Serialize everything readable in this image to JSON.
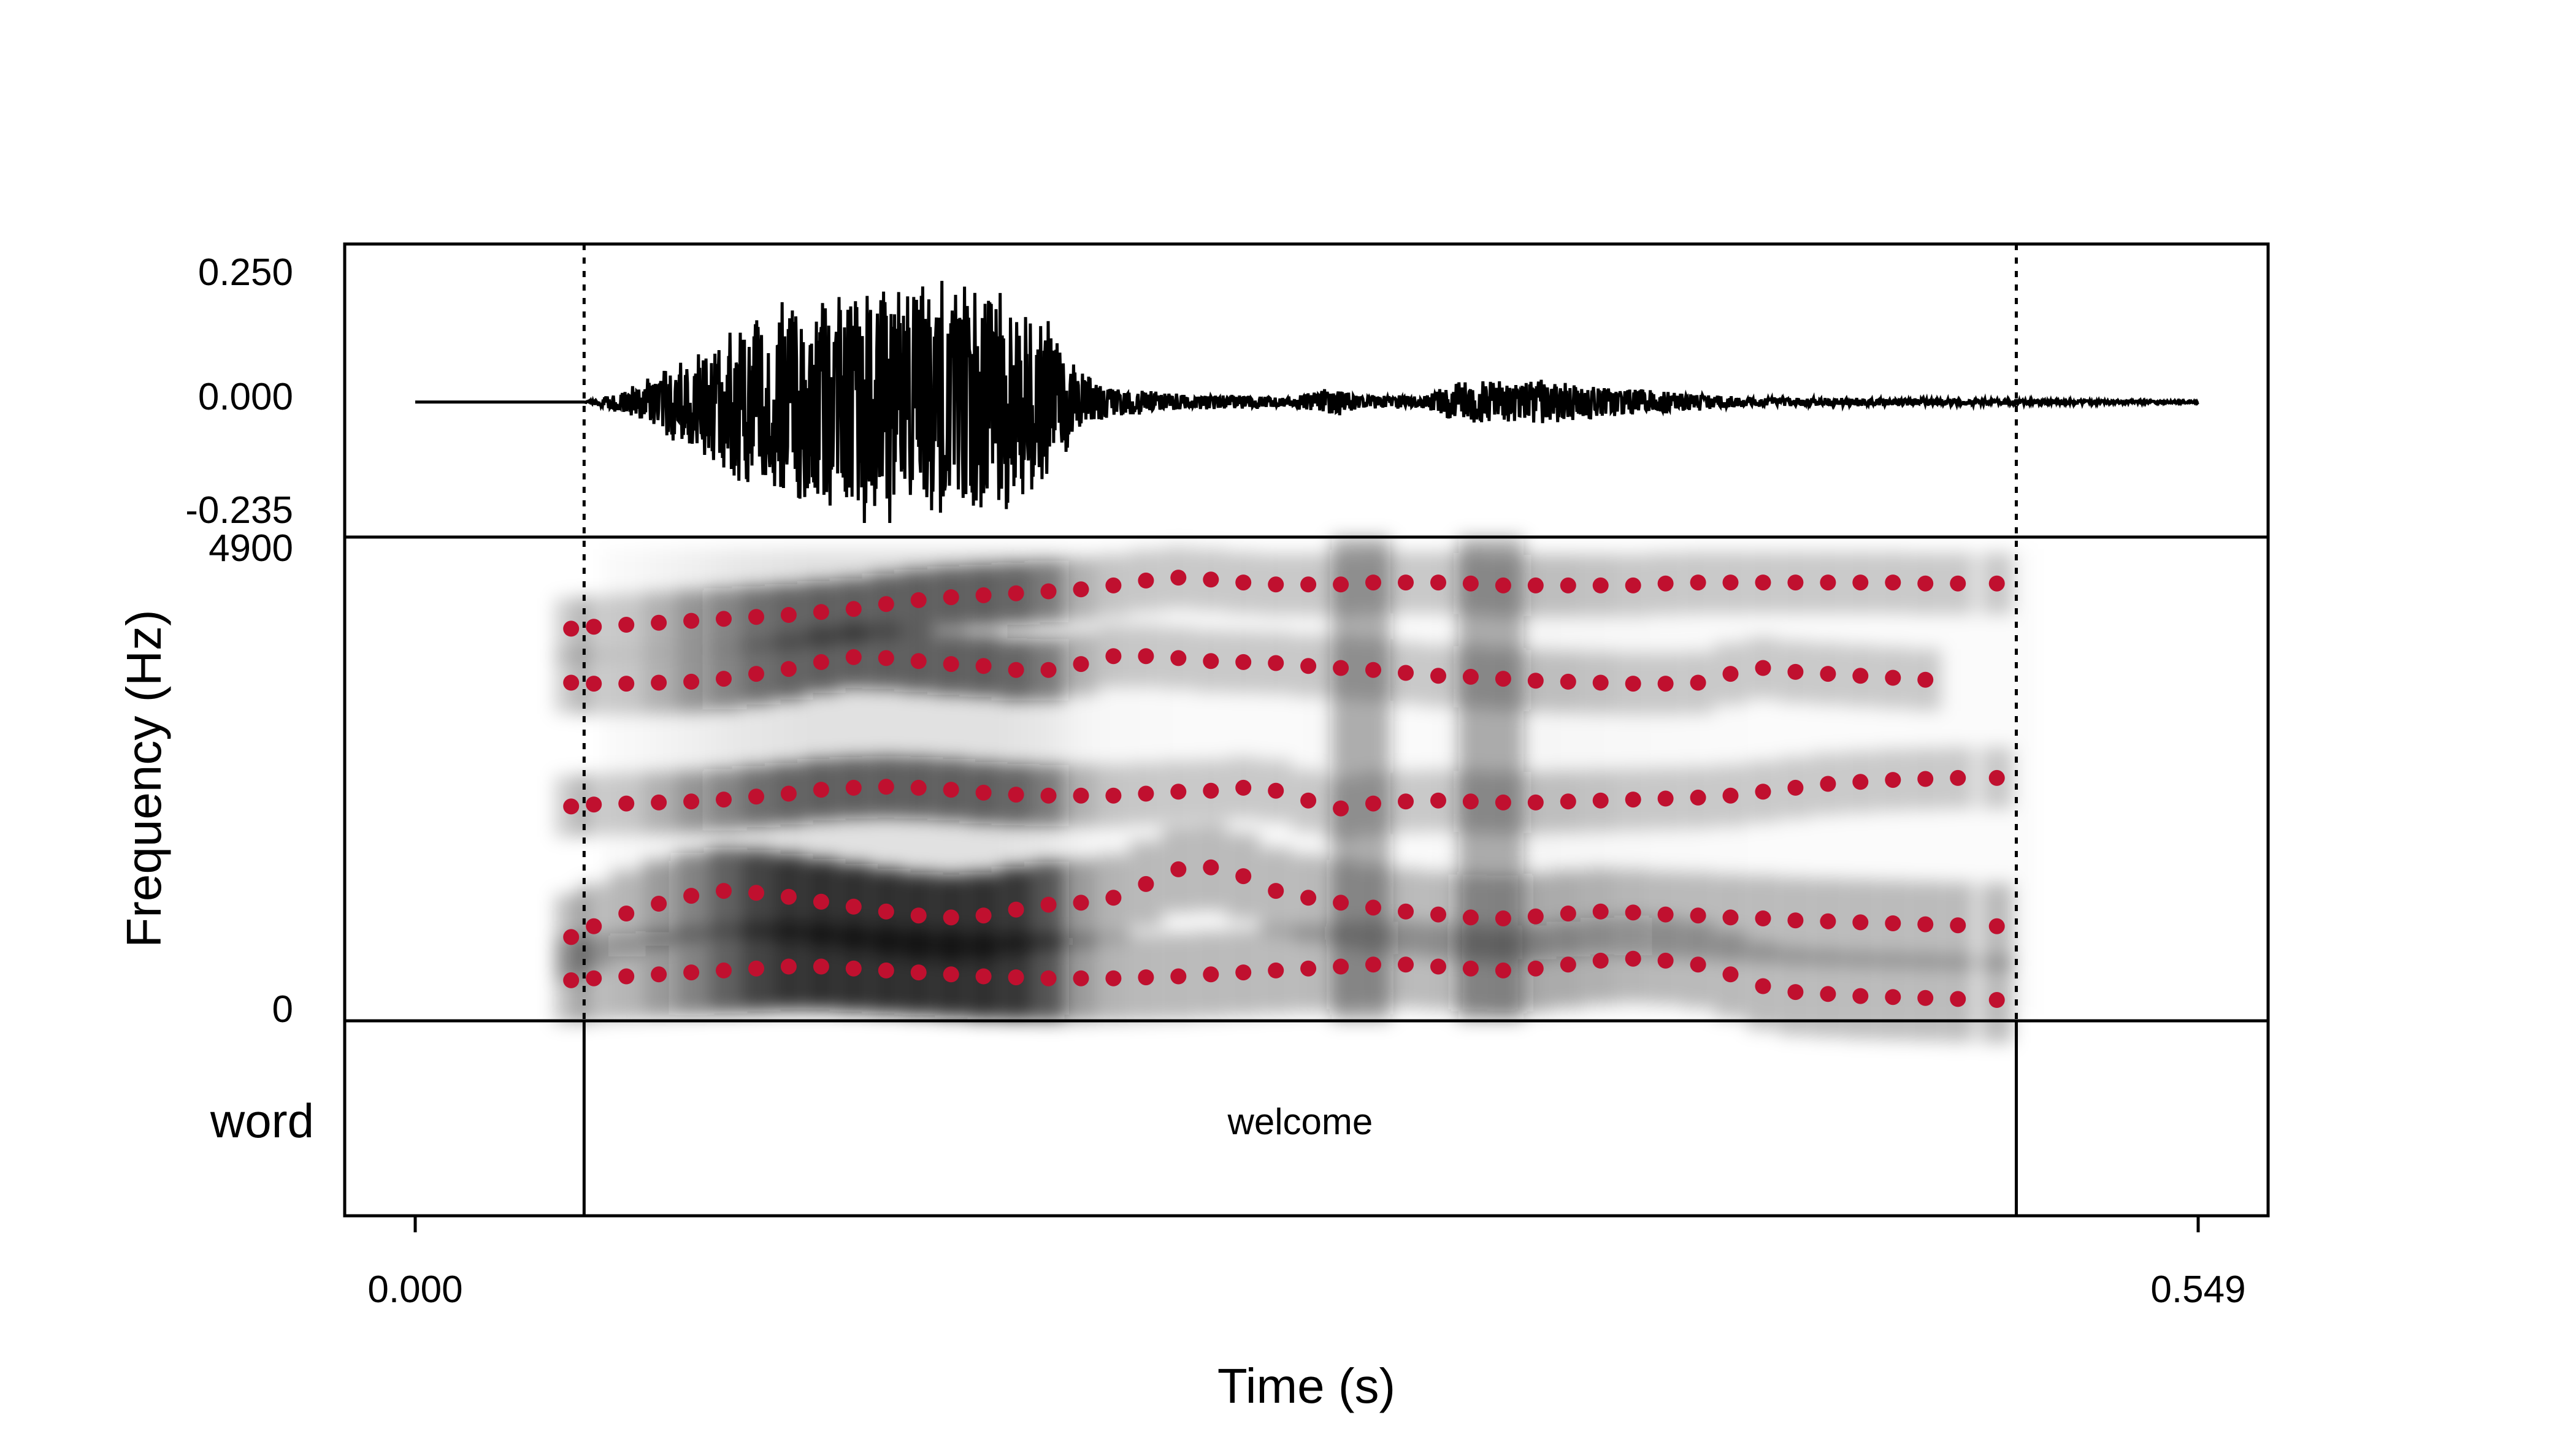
{
  "chart_data": {
    "type": "line",
    "description": "Praat-style display: waveform, spectrogram with formant tracks, and a word annotation tier",
    "xlabel": "Time (s)",
    "xlim": [
      0.0,
      0.549
    ],
    "x_ticks": [
      {
        "value": 0.0,
        "label": "0.000"
      },
      {
        "value": 0.549,
        "label": "0.549"
      }
    ],
    "selection": {
      "start": 0.052,
      "end": 0.493
    },
    "waveform": {
      "y_ticks": [
        {
          "value": 0.25,
          "label": "0.250"
        },
        {
          "value": 0.0,
          "label": "0.000"
        },
        {
          "value": -0.235,
          "label": "-0.235"
        }
      ],
      "ylim": [
        -0.235,
        0.25
      ],
      "envelope": [
        {
          "t": 0.0,
          "a": 0.0
        },
        {
          "t": 0.052,
          "a": 0.0
        },
        {
          "t": 0.06,
          "a": 0.015
        },
        {
          "t": 0.07,
          "a": 0.04
        },
        {
          "t": 0.08,
          "a": 0.08
        },
        {
          "t": 0.09,
          "a": 0.12
        },
        {
          "t": 0.1,
          "a": 0.17
        },
        {
          "t": 0.12,
          "a": 0.215
        },
        {
          "t": 0.14,
          "a": 0.245
        },
        {
          "t": 0.16,
          "a": 0.25
        },
        {
          "t": 0.18,
          "a": 0.22
        },
        {
          "t": 0.195,
          "a": 0.16
        },
        {
          "t": 0.205,
          "a": 0.06
        },
        {
          "t": 0.215,
          "a": 0.03
        },
        {
          "t": 0.24,
          "a": 0.015
        },
        {
          "t": 0.27,
          "a": 0.012
        },
        {
          "t": 0.283,
          "a": 0.03
        },
        {
          "t": 0.29,
          "a": 0.015
        },
        {
          "t": 0.31,
          "a": 0.012
        },
        {
          "t": 0.32,
          "a": 0.04
        },
        {
          "t": 0.345,
          "a": 0.045
        },
        {
          "t": 0.39,
          "a": 0.02
        },
        {
          "t": 0.41,
          "a": 0.01
        },
        {
          "t": 0.5,
          "a": 0.005
        },
        {
          "t": 0.549,
          "a": 0.002
        }
      ]
    },
    "spectrogram": {
      "ylabel": "Frequency (Hz)",
      "ylim": [
        0,
        4900
      ],
      "y_ticks": [
        {
          "value": 4900,
          "label": "4900"
        },
        {
          "value": 0,
          "label": "0"
        }
      ],
      "dot_color": "#C0102F",
      "formant_series": [
        {
          "times": [
            0.048,
            0.055,
            0.065,
            0.075,
            0.085,
            0.095,
            0.105,
            0.115,
            0.125,
            0.135,
            0.145,
            0.155,
            0.165,
            0.175,
            0.185,
            0.195,
            0.205,
            0.215,
            0.225,
            0.235,
            0.245,
            0.255,
            0.265,
            0.275,
            0.285,
            0.295,
            0.305,
            0.315,
            0.325,
            0.335,
            0.345,
            0.355,
            0.365,
            0.375,
            0.385,
            0.395,
            0.405,
            0.415,
            0.425,
            0.435,
            0.445,
            0.455,
            0.465,
            0.475,
            0.487
          ],
          "values": [
            400,
            420,
            440,
            460,
            480,
            500,
            520,
            540,
            540,
            520,
            500,
            480,
            460,
            440,
            430,
            420,
            420,
            420,
            430,
            440,
            460,
            480,
            500,
            520,
            540,
            560,
            560,
            540,
            520,
            500,
            520,
            560,
            600,
            620,
            600,
            560,
            460,
            340,
            280,
            260,
            240,
            230,
            220,
            210,
            200
          ]
        },
        {
          "times": [
            0.048,
            0.055,
            0.065,
            0.075,
            0.085,
            0.095,
            0.105,
            0.115,
            0.125,
            0.135,
            0.145,
            0.155,
            0.165,
            0.175,
            0.185,
            0.195,
            0.205,
            0.215,
            0.225,
            0.235,
            0.245,
            0.255,
            0.265,
            0.275,
            0.285,
            0.295,
            0.305,
            0.315,
            0.325,
            0.335,
            0.345,
            0.355,
            0.365,
            0.375,
            0.385,
            0.395,
            0.405,
            0.415,
            0.425,
            0.435,
            0.445,
            0.455,
            0.465,
            0.475,
            0.487
          ],
          "values": [
            840,
            950,
            1080,
            1180,
            1260,
            1310,
            1290,
            1250,
            1200,
            1150,
            1100,
            1060,
            1040,
            1060,
            1120,
            1170,
            1190,
            1240,
            1380,
            1530,
            1550,
            1460,
            1310,
            1240,
            1190,
            1140,
            1100,
            1070,
            1040,
            1030,
            1050,
            1080,
            1100,
            1090,
            1070,
            1060,
            1040,
            1030,
            1010,
            1000,
            990,
            980,
            970,
            960,
            950
          ]
        },
        {
          "times": [
            0.048,
            0.055,
            0.065,
            0.075,
            0.085,
            0.095,
            0.105,
            0.115,
            0.125,
            0.135,
            0.145,
            0.155,
            0.165,
            0.175,
            0.185,
            0.195,
            0.205,
            0.215,
            0.225,
            0.235,
            0.245,
            0.255,
            0.265,
            0.275,
            0.285,
            0.295,
            0.305,
            0.315,
            0.325,
            0.335,
            0.345,
            0.355,
            0.365,
            0.375,
            0.385,
            0.395,
            0.405,
            0.415,
            0.425,
            0.435,
            0.445,
            0.455,
            0.465,
            0.475,
            0.487
          ],
          "values": [
            2170,
            2190,
            2200,
            2210,
            2220,
            2240,
            2270,
            2300,
            2340,
            2360,
            2370,
            2360,
            2340,
            2310,
            2290,
            2280,
            2280,
            2280,
            2300,
            2320,
            2330,
            2360,
            2330,
            2230,
            2150,
            2200,
            2220,
            2230,
            2220,
            2210,
            2210,
            2220,
            2230,
            2240,
            2250,
            2260,
            2280,
            2320,
            2360,
            2400,
            2420,
            2440,
            2450,
            2460,
            2460
          ]
        },
        {
          "times": [
            0.048,
            0.055,
            0.065,
            0.075,
            0.085,
            0.095,
            0.105,
            0.115,
            0.125,
            0.135,
            0.145,
            0.155,
            0.165,
            0.175,
            0.185,
            0.195,
            0.205,
            0.215,
            0.225,
            0.235,
            0.245,
            0.255,
            0.265,
            0.275,
            0.285,
            0.295,
            0.305,
            0.315,
            0.325,
            0.335,
            0.345,
            0.355,
            0.365,
            0.375,
            0.385,
            0.395,
            0.405,
            0.415,
            0.425,
            0.435,
            0.445,
            0.455,
            0.465
          ],
          "values": [
            3430,
            3420,
            3420,
            3430,
            3440,
            3470,
            3520,
            3570,
            3640,
            3690,
            3680,
            3650,
            3620,
            3600,
            3560,
            3560,
            3620,
            3700,
            3700,
            3680,
            3650,
            3640,
            3630,
            3600,
            3580,
            3560,
            3530,
            3500,
            3490,
            3470,
            3450,
            3440,
            3430,
            3420,
            3420,
            3430,
            3520,
            3580,
            3540,
            3520,
            3500,
            3480,
            3460
          ]
        },
        {
          "times": [
            0.048,
            0.055,
            0.065,
            0.075,
            0.085,
            0.095,
            0.105,
            0.115,
            0.125,
            0.135,
            0.145,
            0.155,
            0.165,
            0.175,
            0.185,
            0.195,
            0.205,
            0.215,
            0.225,
            0.235,
            0.245,
            0.255,
            0.265,
            0.275,
            0.285,
            0.295,
            0.305,
            0.315,
            0.325,
            0.335,
            0.345,
            0.355,
            0.365,
            0.375,
            0.385,
            0.395,
            0.405,
            0.415,
            0.425,
            0.435,
            0.445,
            0.455,
            0.465,
            0.475,
            0.487
          ],
          "values": [
            3980,
            4000,
            4020,
            4040,
            4060,
            4080,
            4100,
            4120,
            4150,
            4180,
            4230,
            4270,
            4300,
            4320,
            4340,
            4360,
            4380,
            4420,
            4470,
            4500,
            4480,
            4450,
            4430,
            4430,
            4430,
            4450,
            4450,
            4450,
            4440,
            4420,
            4420,
            4420,
            4420,
            4420,
            4440,
            4450,
            4450,
            4450,
            4450,
            4450,
            4450,
            4450,
            4440,
            4440,
            4440
          ]
        }
      ]
    },
    "tier": {
      "name": "word",
      "intervals": [
        {
          "start": 0.052,
          "end": 0.493,
          "text": "welcome"
        }
      ]
    }
  }
}
